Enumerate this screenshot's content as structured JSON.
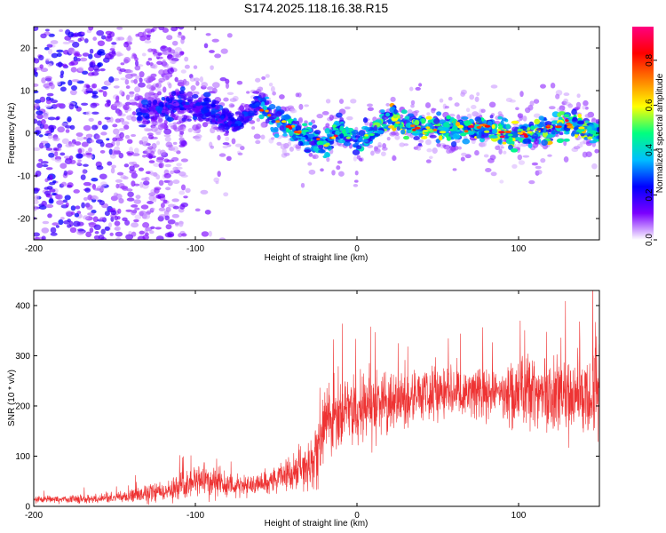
{
  "chart_data": [
    {
      "type": "heatmap",
      "title": "S174.2025.118.16.38.R15",
      "xlabel": "Height of straight line (km)",
      "ylabel": "Frequency (Hz)",
      "xlim": [
        -200,
        150
      ],
      "ylim": [
        -25,
        25
      ],
      "x_ticks": [
        -200,
        -100,
        0,
        100
      ],
      "y_ticks": [
        -20,
        -10,
        0,
        10,
        20
      ],
      "colorbar": {
        "label": "Normalized spectral amplitude",
        "range": [
          0,
          0.95
        ],
        "ticks": [
          "0.0",
          "0.2",
          "0.4",
          "0.6",
          "0.8"
        ],
        "colors": [
          "#ffffff",
          "#7b00ff",
          "#0000ff",
          "#00bfff",
          "#00ff7f",
          "#ffff00",
          "#ff7f00",
          "#ff0000",
          "#ff0080"
        ]
      },
      "ridge": {
        "x": [
          -130,
          -110,
          -90,
          -75,
          -60,
          -50,
          -40,
          -30,
          -20,
          -10,
          0,
          10,
          20,
          30,
          40,
          50,
          60,
          70,
          80,
          90,
          100,
          110,
          120,
          130,
          140,
          150
        ],
        "freq": [
          5,
          7,
          5,
          2,
          7,
          3,
          1,
          -1,
          -3,
          1,
          -2,
          0,
          4,
          2,
          1,
          1,
          1,
          1,
          1,
          0,
          0,
          0,
          1,
          2,
          1,
          0
        ]
      },
      "background_noise_x_range": [
        -200,
        -75
      ]
    },
    {
      "type": "line",
      "xlabel": "Height of straight line (km)",
      "ylabel": "SNR (10 * v/v)",
      "xlim": [
        -200,
        150
      ],
      "ylim": [
        0,
        430
      ],
      "x_ticks": [
        -200,
        -100,
        0,
        100
      ],
      "y_ticks": [
        0,
        100,
        200,
        300,
        400
      ],
      "series": [
        {
          "color": "#ee3333",
          "envelope_x": [
            -200,
            -180,
            -160,
            -140,
            -120,
            -100,
            -90,
            -80,
            -70,
            -60,
            -50,
            -40,
            -30,
            -25,
            -20,
            -10,
            0,
            20,
            40,
            60,
            80,
            100,
            120,
            140,
            150
          ],
          "baseline": [
            14,
            14,
            14,
            20,
            30,
            45,
            55,
            45,
            42,
            45,
            55,
            65,
            80,
            110,
            160,
            180,
            195,
            210,
            220,
            230,
            225,
            230,
            225,
            215,
            220
          ],
          "amplitude": [
            6,
            7,
            8,
            12,
            20,
            30,
            28,
            20,
            18,
            20,
            25,
            28,
            40,
            60,
            60,
            60,
            55,
            55,
            50,
            45,
            45,
            55,
            65,
            70,
            65
          ]
        }
      ]
    }
  ]
}
